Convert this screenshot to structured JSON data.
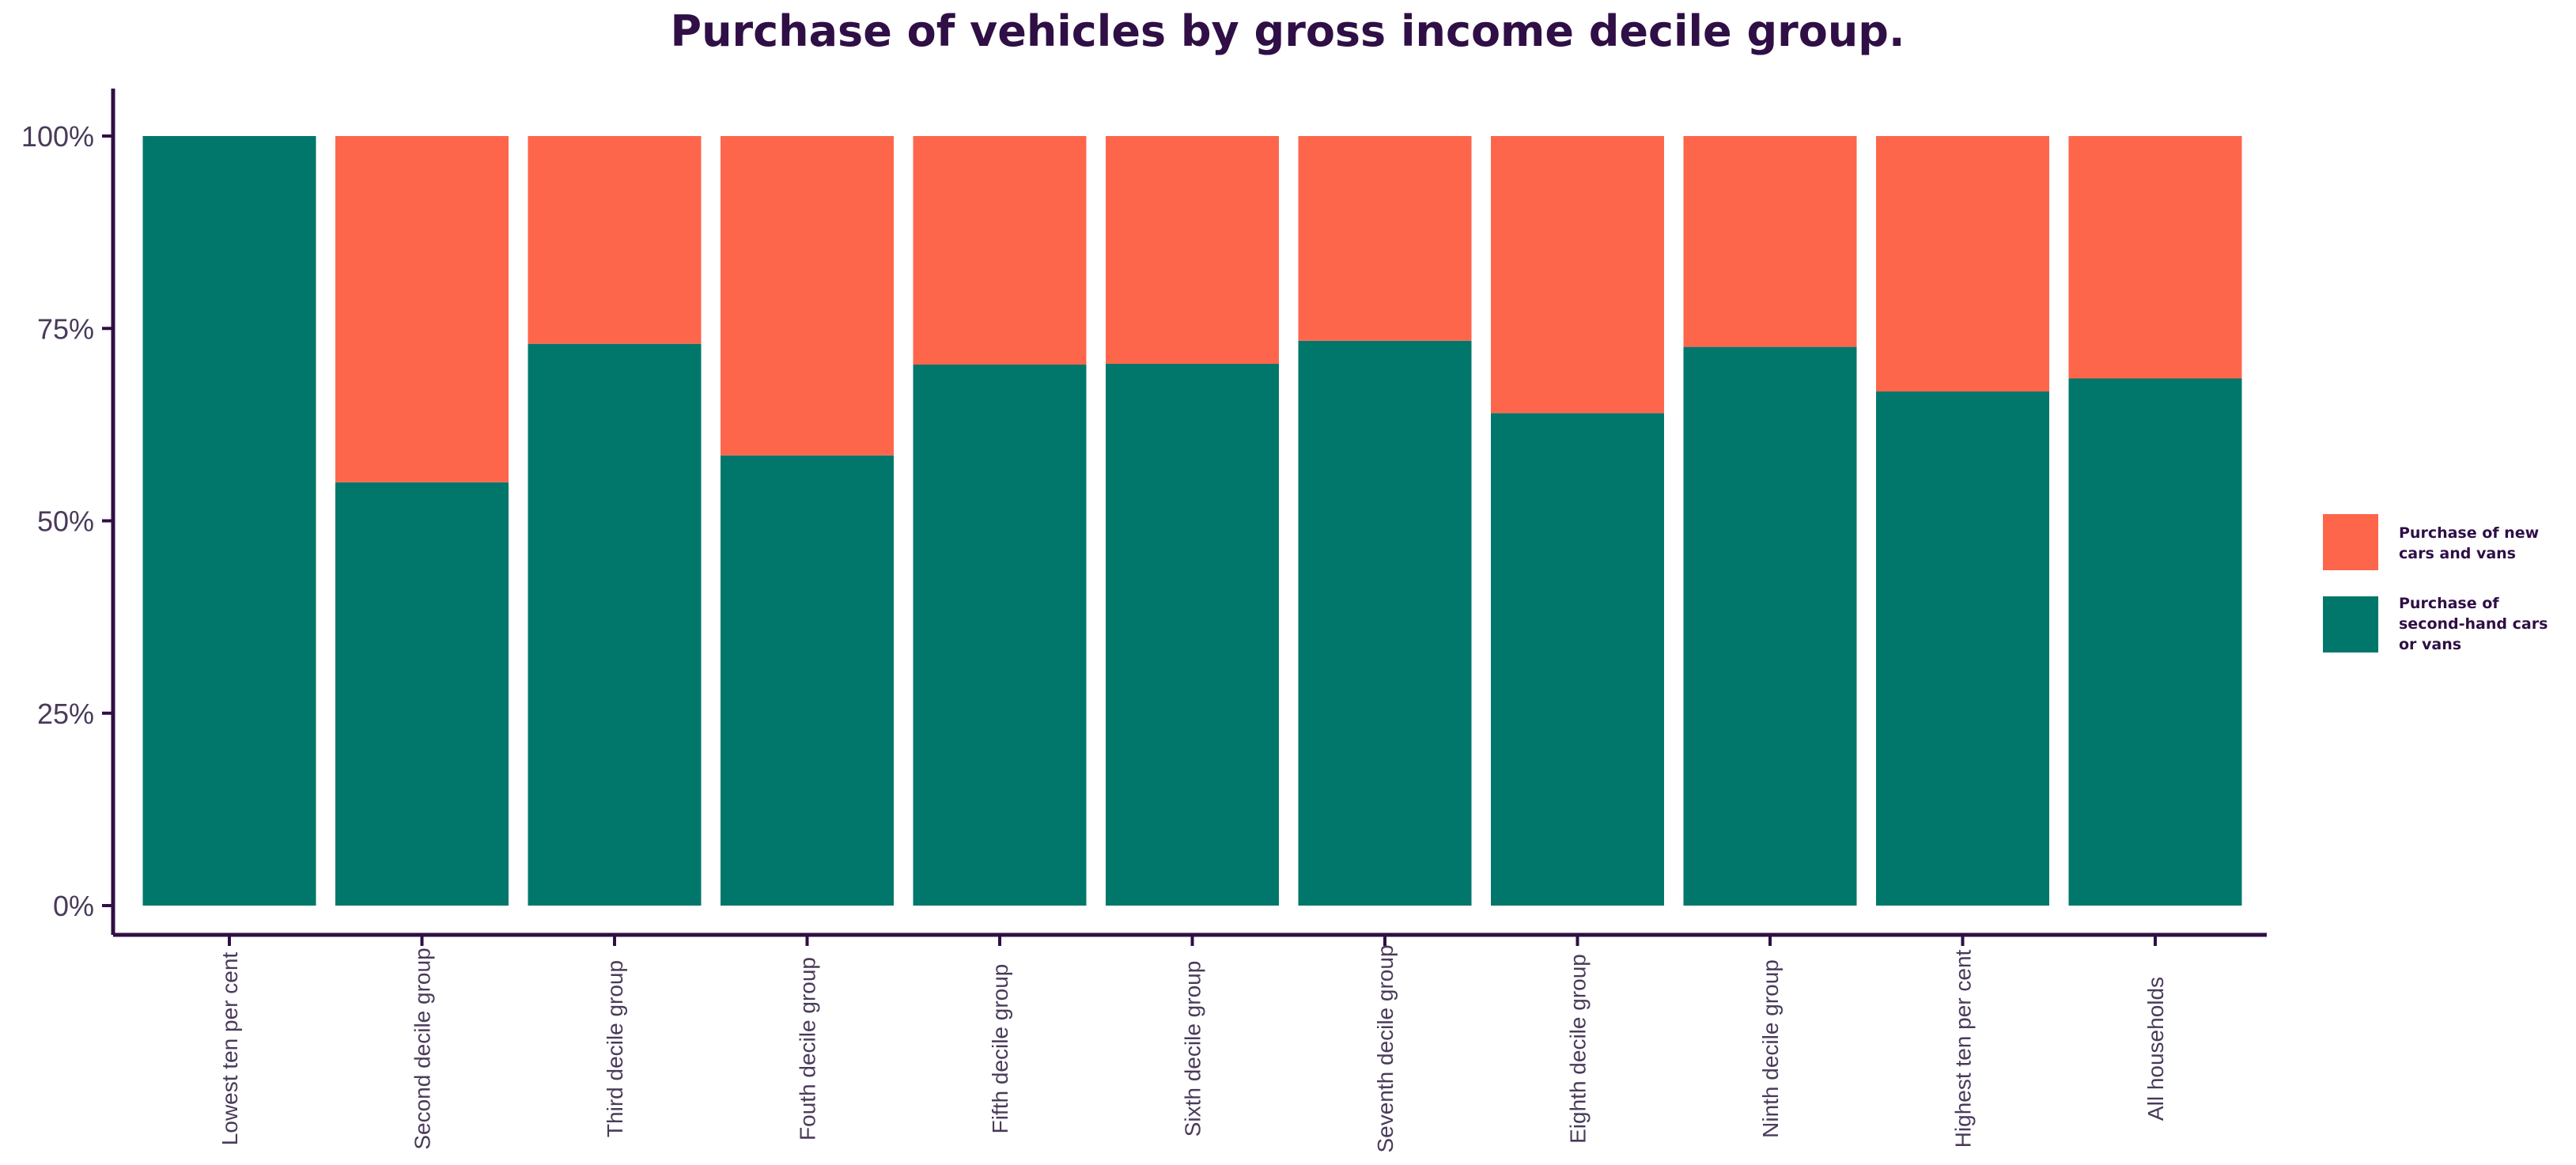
{
  "chart_data": {
    "type": "bar",
    "stacked": true,
    "title": "Purchase of vehicles by gross income decile group.",
    "xlabel": "",
    "ylabel": "",
    "ylim": [
      0,
      100
    ],
    "y_ticks": [
      "0%",
      "25%",
      "50%",
      "75%",
      "100%"
    ],
    "y_tick_values": [
      0,
      25,
      50,
      75,
      100
    ],
    "categories": [
      "Lowest ten per cent",
      "Second decile group",
      "Third decile group",
      "Fouth decile group",
      "Fifth decile group",
      "Sixth decile group",
      "Seventh decile group",
      "Eighth decile group",
      "Ninth decile group",
      "Highest ten per cent",
      "All households"
    ],
    "series": [
      {
        "name": "Purchase of second-hand cars or vans",
        "legend_lines": [
          "Purchase of",
          "second-hand cars",
          "or vans"
        ],
        "color": "#00776a",
        "values": [
          100,
          55,
          73,
          58.5,
          70.3,
          70.4,
          73.4,
          64,
          72.6,
          66.8,
          68.5
        ]
      },
      {
        "name": "Purchase of new cars and vans",
        "legend_lines": [
          "Purchase of new",
          "cars and vans"
        ],
        "color": "#fe664c",
        "values": [
          0,
          45,
          27,
          41.5,
          29.7,
          29.6,
          26.6,
          36,
          27.4,
          33.2,
          31.5
        ]
      }
    ],
    "legend_position": "right",
    "grid": false
  },
  "colors": {
    "title": "#2f0f45",
    "axis": "#2f0f45",
    "tick_text": "#4a3a5a"
  }
}
